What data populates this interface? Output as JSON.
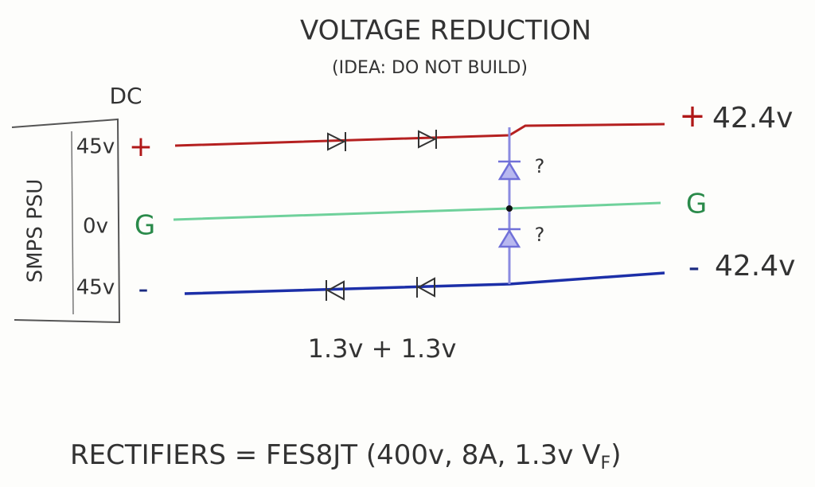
{
  "header": {
    "title": "VOLTAGE REDUCTION",
    "subtitle": "(IDEA: DO NOT BUILD)"
  },
  "source": {
    "label": "DC",
    "name": "SMPS PSU",
    "outputs": [
      {
        "voltage": "45v",
        "terminal": "+"
      },
      {
        "voltage": "0v",
        "terminal": "G"
      },
      {
        "voltage": "45v",
        "terminal": "-"
      }
    ]
  },
  "outputs": [
    {
      "terminal": "+",
      "voltage": "42.4v"
    },
    {
      "terminal": "G"
    },
    {
      "terminal": "-",
      "voltage": "42.4v"
    }
  ],
  "zener_marks": [
    "?",
    "?"
  ],
  "drop_label": "1.3v + 1.3v",
  "footer": {
    "text": "RECTIFIERS = FES8JT (400v, 8A, 1.3v V",
    "subscript": "F",
    "close": ")"
  }
}
